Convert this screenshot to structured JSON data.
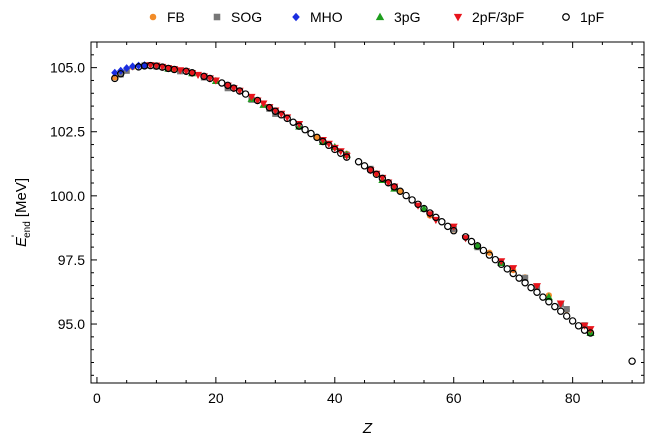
{
  "chart_data": {
    "type": "scatter",
    "xlabel": "Z",
    "ylabel_main": "E",
    "ylabel_prime": "'",
    "ylabel_sub": "end",
    "ylabel_unit": "[MeV]",
    "xlim": [
      -1,
      92
    ],
    "ylim": [
      92.7,
      106.0
    ],
    "xticks": [
      0,
      20,
      40,
      60,
      80
    ],
    "yticks": [
      95.0,
      97.5,
      100.0,
      102.5,
      105.0
    ],
    "xtick_labels": [
      "0",
      "20",
      "40",
      "60",
      "80"
    ],
    "ytick_labels": [
      "95.0",
      "97.5",
      "100.0",
      "102.5",
      "105.0"
    ],
    "grid": false,
    "legend_position": "top",
    "series": [
      {
        "name": "FB",
        "marker": "circle",
        "color": "#f28c28",
        "points": [
          [
            3,
            104.62
          ],
          [
            6,
            105.02
          ],
          [
            8,
            105.08
          ],
          [
            10,
            105.07
          ],
          [
            13,
            104.92
          ],
          [
            20,
            104.5
          ],
          [
            26,
            103.8
          ],
          [
            29,
            103.45
          ],
          [
            37,
            102.28
          ],
          [
            42,
            101.64
          ],
          [
            47,
            100.87
          ],
          [
            51,
            100.18
          ],
          [
            56,
            99.23
          ],
          [
            60,
            98.68
          ],
          [
            64,
            98.03
          ],
          [
            66,
            97.78
          ],
          [
            70,
            97.1
          ],
          [
            72,
            96.82
          ],
          [
            76,
            96.12
          ],
          [
            79,
            95.55
          ],
          [
            83,
            94.7
          ]
        ]
      },
      {
        "name": "SOG",
        "marker": "square",
        "color": "#777777",
        "points": [
          [
            4,
            104.74
          ],
          [
            5,
            104.88
          ],
          [
            8,
            105.08
          ],
          [
            10,
            105.05
          ],
          [
            12,
            104.96
          ],
          [
            14,
            104.86
          ],
          [
            18,
            104.62
          ],
          [
            22,
            104.2
          ],
          [
            26,
            103.75
          ],
          [
            29,
            103.4
          ],
          [
            30,
            103.2
          ],
          [
            42,
            101.6
          ],
          [
            46,
            101.05
          ],
          [
            50,
            100.3
          ],
          [
            60,
            98.7
          ],
          [
            64,
            98.0
          ],
          [
            72,
            96.8
          ],
          [
            74,
            96.45
          ],
          [
            78,
            95.77
          ],
          [
            79,
            95.58
          ],
          [
            82,
            94.95
          ]
        ]
      },
      {
        "name": "MHO",
        "marker": "diamond",
        "color": "#1a2ee0",
        "points": [
          [
            3,
            104.8
          ],
          [
            4,
            104.88
          ],
          [
            5,
            104.98
          ],
          [
            6,
            105.05
          ],
          [
            7,
            105.08
          ],
          [
            8,
            105.1
          ]
        ]
      },
      {
        "name": "3pG",
        "marker": "triangle-up",
        "color": "#1e9e1e",
        "points": [
          [
            12,
            104.96
          ],
          [
            16,
            104.78
          ],
          [
            20,
            104.48
          ],
          [
            26,
            103.78
          ],
          [
            28,
            103.55
          ],
          [
            34,
            102.7
          ],
          [
            38,
            102.1
          ],
          [
            40,
            101.9
          ],
          [
            42,
            101.6
          ],
          [
            48,
            100.62
          ],
          [
            50,
            100.28
          ],
          [
            55,
            99.5
          ],
          [
            64,
            98.05
          ],
          [
            68,
            97.38
          ],
          [
            76,
            96.05
          ],
          [
            83,
            94.65
          ]
        ]
      },
      {
        "name": "2pF/3pF",
        "marker": "triangle-down",
        "color": "#e8141c",
        "points": [
          [
            9,
            105.1
          ],
          [
            10,
            105.08
          ],
          [
            11,
            105.03
          ],
          [
            12,
            104.98
          ],
          [
            13,
            104.94
          ],
          [
            14,
            104.9
          ],
          [
            15,
            104.86
          ],
          [
            16,
            104.79
          ],
          [
            17,
            104.72
          ],
          [
            18,
            104.66
          ],
          [
            19,
            104.58
          ],
          [
            20,
            104.5
          ],
          [
            22,
            104.3
          ],
          [
            23,
            104.2
          ],
          [
            24,
            104.1
          ],
          [
            26,
            103.86
          ],
          [
            27,
            103.72
          ],
          [
            28,
            103.6
          ],
          [
            29,
            103.46
          ],
          [
            30,
            103.33
          ],
          [
            31,
            103.2
          ],
          [
            32,
            103.06
          ],
          [
            34,
            102.8
          ],
          [
            38,
            102.18
          ],
          [
            39,
            102.03
          ],
          [
            40,
            101.87
          ],
          [
            41,
            101.74
          ],
          [
            42,
            101.56
          ],
          [
            46,
            101.0
          ],
          [
            47,
            100.86
          ],
          [
            48,
            100.7
          ],
          [
            49,
            100.52
          ],
          [
            50,
            100.36
          ],
          [
            54,
            99.62
          ],
          [
            56,
            99.28
          ],
          [
            57,
            99.06
          ],
          [
            60,
            98.8
          ],
          [
            62,
            98.35
          ],
          [
            68,
            97.45
          ],
          [
            70,
            97.18
          ],
          [
            74,
            96.48
          ],
          [
            78,
            95.8
          ],
          [
            82,
            94.94
          ],
          [
            83,
            94.8
          ]
        ]
      },
      {
        "name": "1pF",
        "marker": "open-circle",
        "color": "#000000",
        "points": [
          [
            3,
            104.58
          ],
          [
            4,
            104.76
          ],
          [
            7,
            105.03
          ],
          [
            8,
            105.07
          ],
          [
            9,
            105.08
          ],
          [
            10,
            105.06
          ],
          [
            11,
            105.02
          ],
          [
            12,
            104.97
          ],
          [
            13,
            104.93
          ],
          [
            15,
            104.86
          ],
          [
            16,
            104.8
          ],
          [
            18,
            104.66
          ],
          [
            19,
            104.58
          ],
          [
            21,
            104.4
          ],
          [
            22,
            104.31
          ],
          [
            23,
            104.2
          ],
          [
            24,
            104.09
          ],
          [
            25,
            103.97
          ],
          [
            27,
            103.72
          ],
          [
            29,
            103.44
          ],
          [
            30,
            103.3
          ],
          [
            31,
            103.16
          ],
          [
            32,
            103.02
          ],
          [
            33,
            102.87
          ],
          [
            34,
            102.72
          ],
          [
            35,
            102.58
          ],
          [
            36,
            102.43
          ],
          [
            37,
            102.28
          ],
          [
            38,
            102.12
          ],
          [
            39,
            101.97
          ],
          [
            40,
            101.81
          ],
          [
            41,
            101.66
          ],
          [
            42,
            101.51
          ],
          [
            44,
            101.33
          ],
          [
            45,
            101.17
          ],
          [
            46,
            101.01
          ],
          [
            47,
            100.84
          ],
          [
            48,
            100.68
          ],
          [
            49,
            100.51
          ],
          [
            50,
            100.35
          ],
          [
            51,
            100.18
          ],
          [
            52,
            100.01
          ],
          [
            53,
            99.84
          ],
          [
            54,
            99.67
          ],
          [
            55,
            99.5
          ],
          [
            56,
            99.33
          ],
          [
            57,
            99.16
          ],
          [
            58,
            98.99
          ],
          [
            59,
            98.81
          ],
          [
            60,
            98.64
          ],
          [
            62,
            98.4
          ],
          [
            63,
            98.22
          ],
          [
            64,
            98.05
          ],
          [
            65,
            97.87
          ],
          [
            66,
            97.69
          ],
          [
            67,
            97.51
          ],
          [
            68,
            97.33
          ],
          [
            69,
            97.15
          ],
          [
            70,
            96.97
          ],
          [
            71,
            96.79
          ],
          [
            72,
            96.61
          ],
          [
            73,
            96.42
          ],
          [
            74,
            96.24
          ],
          [
            75,
            96.05
          ],
          [
            76,
            95.87
          ],
          [
            77,
            95.68
          ],
          [
            78,
            95.5
          ],
          [
            79,
            95.31
          ],
          [
            80,
            95.12
          ],
          [
            81,
            94.93
          ],
          [
            82,
            94.76
          ],
          [
            83,
            94.65
          ],
          [
            90,
            93.55
          ]
        ]
      }
    ]
  }
}
